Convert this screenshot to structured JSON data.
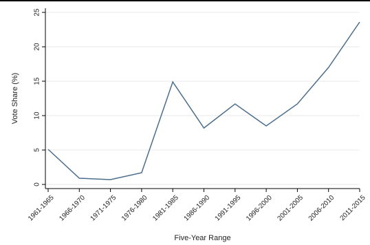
{
  "chart_data": {
    "type": "line",
    "title": "",
    "xlabel": "Five-Year Range",
    "ylabel": "Vote Share (%)",
    "categories": [
      "1961-1965",
      "1966-1970",
      "1971-1975",
      "1976-1980",
      "1981-1985",
      "1986-1990",
      "1991-1995",
      "1996-2000",
      "2001-2005",
      "2006-2010",
      "2011-2015"
    ],
    "series": [
      {
        "values": [
          5.1,
          0.9,
          0.7,
          1.7,
          14.9,
          8.2,
          11.7,
          8.5,
          11.7,
          17.0,
          23.6
        ]
      }
    ],
    "ylim": [
      -0.6,
      25.6
    ],
    "yticks": [
      0,
      5,
      10,
      15,
      20,
      25
    ],
    "grid": true,
    "legend": "none",
    "colors": {
      "line": "#4a6d8c",
      "grid": "#eaeaea",
      "axis": "#000000",
      "frame": "#000000"
    }
  }
}
